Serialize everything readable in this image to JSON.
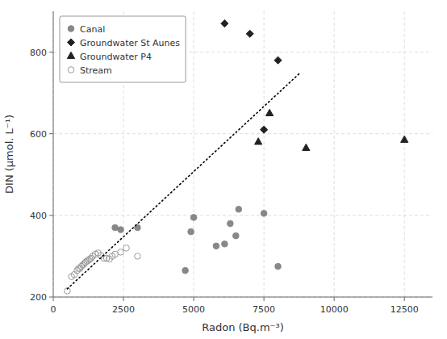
{
  "chart_data": {
    "type": "scatter",
    "xlabel": "Radon (Bq.m⁻³)",
    "ylabel": "DIN (µmol. L⁻¹)",
    "xlim": [
      0,
      13500
    ],
    "ylim": [
      200,
      900
    ],
    "xticks": [
      0,
      2500,
      5000,
      7500,
      10000,
      12500
    ],
    "yticks": [
      200,
      400,
      600,
      800
    ],
    "grid": true,
    "legend": "upper left",
    "series": [
      {
        "name": "Canal",
        "color": "#888888",
        "marker": "circle",
        "x": [
          2200,
          2400,
          3000,
          4700,
          4900,
          5000,
          5800,
          6100,
          6300,
          6500,
          6600,
          7500,
          8000
        ],
        "values": [
          370,
          365,
          370,
          265,
          360,
          395,
          325,
          330,
          380,
          350,
          415,
          405,
          275
        ]
      },
      {
        "name": "Groundwater St Aunes",
        "color": "#222222",
        "marker": "diamond",
        "x": [
          6100,
          7000,
          7500,
          8000
        ],
        "values": [
          870,
          845,
          610,
          780
        ]
      },
      {
        "name": "Groundwater P4",
        "color": "#222222",
        "marker": "triangle",
        "x": [
          7300,
          7700,
          9000,
          12500
        ],
        "values": [
          580,
          650,
          565,
          585
        ]
      },
      {
        "name": "Stream",
        "color": "#999999",
        "marker": "open-circle",
        "x": [
          500,
          650,
          750,
          850,
          900,
          950,
          1000,
          1050,
          1100,
          1150,
          1200,
          1250,
          1300,
          1350,
          1400,
          1500,
          1600,
          1700,
          1800,
          1900,
          2000,
          2100,
          2200,
          2400,
          2600,
          3000
        ],
        "values": [
          215,
          250,
          255,
          265,
          270,
          270,
          275,
          278,
          282,
          285,
          288,
          290,
          293,
          295,
          300,
          305,
          308,
          302,
          295,
          295,
          293,
          300,
          305,
          310,
          320,
          300
        ]
      },
      {
        "type": "line",
        "line_style": "dotted",
        "color": "#000000",
        "x": [
          500,
          8800
        ],
        "values": [
          220,
          750
        ]
      }
    ]
  }
}
